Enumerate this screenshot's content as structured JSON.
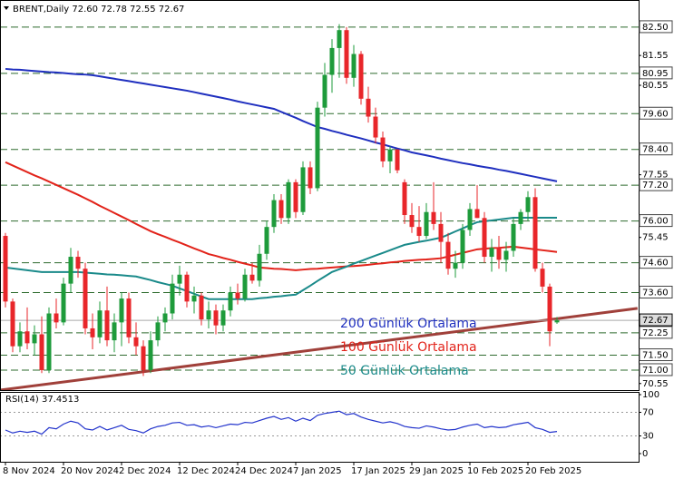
{
  "chart_data": [
    {
      "type": "candlestick",
      "title": "BRENT,Daily 72.60 72.78 72.55 72.67",
      "categories": [
        "8 Nov 2024",
        null,
        null,
        null,
        null,
        null,
        null,
        null,
        "20 Nov 2024",
        null,
        null,
        null,
        null,
        null,
        null,
        null,
        "2 Dec 2024",
        null,
        null,
        null,
        null,
        null,
        null,
        null,
        "12 Dec 2024",
        null,
        null,
        null,
        null,
        null,
        null,
        null,
        "24 Dec 2024",
        null,
        null,
        null,
        null,
        null,
        null,
        null,
        "7 Jan 2025",
        null,
        null,
        null,
        null,
        null,
        null,
        null,
        "17 Jan 2025",
        null,
        null,
        null,
        null,
        null,
        null,
        null,
        "29 Jan 2025",
        null,
        null,
        null,
        null,
        null,
        null,
        null,
        "10 Feb 2025",
        null,
        null,
        null,
        null,
        null,
        null,
        null,
        "20 Feb 2025",
        null,
        null,
        null,
        null
      ],
      "open": [
        75.5,
        73.3,
        71.8,
        72.3,
        71.9,
        72.2,
        71.0,
        72.9,
        72.6,
        73.9,
        74.8,
        74.4,
        72.4,
        72.1,
        73.0,
        72.0,
        72.6,
        73.4,
        72.1,
        71.8,
        71.0,
        72.0,
        72.6,
        72.9,
        73.9,
        74.2,
        73.3,
        73.5,
        72.7,
        73.0,
        72.5,
        73.0,
        73.6,
        73.4,
        74.2,
        74.0,
        74.9,
        75.8,
        76.7,
        76.1,
        77.3,
        76.3,
        77.8,
        77.1,
        79.8,
        80.9,
        81.8,
        82.4,
        80.8,
        81.6,
        80.1,
        79.5,
        78.8,
        78.0,
        78.4,
        77.3,
        76.2,
        75.8,
        75.5,
        76.3,
        75.9,
        75.3,
        74.4,
        74.6,
        75.7,
        76.4,
        76.1,
        74.8,
        75.1,
        74.7,
        75.0,
        75.9,
        76.3,
        76.8,
        74.4,
        73.8,
        72.6
      ],
      "high": [
        75.6,
        73.4,
        72.6,
        73.1,
        72.5,
        72.8,
        73.1,
        73.4,
        74.1,
        75.1,
        75.0,
        74.6,
        72.9,
        73.3,
        73.8,
        72.9,
        73.6,
        73.6,
        72.6,
        72.0,
        72.3,
        72.8,
        73.1,
        74.2,
        74.5,
        74.3,
        73.8,
        73.6,
        73.3,
        73.2,
        73.2,
        73.8,
        73.9,
        74.4,
        74.6,
        75.2,
        76.0,
        76.9,
        76.9,
        77.4,
        77.4,
        78.0,
        78.0,
        80.0,
        81.3,
        82.1,
        82.6,
        82.5,
        81.9,
        81.7,
        80.5,
        79.8,
        79.0,
        78.5,
        78.4,
        77.4,
        76.6,
        76.5,
        76.6,
        77.3,
        76.3,
        75.6,
        75.0,
        75.9,
        76.6,
        77.2,
        76.3,
        75.4,
        75.5,
        75.3,
        76.1,
        76.4,
        77.0,
        77.1,
        74.6,
        73.9,
        72.78
      ],
      "low": [
        73.1,
        71.6,
        71.6,
        71.7,
        71.5,
        70.9,
        70.9,
        72.4,
        72.5,
        73.6,
        74.1,
        72.2,
        71.7,
        71.9,
        71.8,
        71.6,
        71.8,
        71.9,
        71.5,
        70.8,
        70.9,
        71.8,
        72.3,
        72.7,
        73.5,
        73.1,
        72.9,
        72.5,
        72.4,
        72.2,
        72.3,
        72.8,
        73.2,
        73.3,
        73.9,
        73.8,
        74.7,
        75.6,
        75.9,
        75.9,
        76.1,
        76.2,
        76.9,
        77.0,
        79.5,
        80.3,
        80.8,
        80.6,
        80.5,
        79.9,
        79.3,
        78.6,
        77.8,
        77.6,
        77.6,
        75.9,
        75.6,
        75.3,
        75.4,
        75.7,
        74.6,
        74.2,
        74.1,
        74.4,
        75.5,
        76.1,
        74.6,
        74.3,
        74.4,
        74.3,
        74.8,
        75.7,
        76.0,
        74.3,
        73.6,
        71.8,
        72.55
      ],
      "close": [
        73.3,
        71.8,
        72.3,
        71.9,
        72.2,
        71.0,
        72.9,
        72.6,
        73.9,
        74.8,
        74.4,
        72.4,
        72.1,
        73.0,
        72.0,
        72.6,
        73.4,
        72.1,
        71.8,
        71.0,
        72.0,
        72.6,
        72.9,
        73.9,
        74.2,
        73.3,
        73.5,
        72.7,
        73.0,
        72.5,
        73.0,
        73.6,
        73.4,
        74.2,
        74.0,
        74.9,
        75.8,
        76.7,
        76.1,
        77.3,
        76.3,
        77.8,
        77.1,
        79.8,
        80.9,
        81.8,
        82.4,
        80.8,
        81.6,
        80.1,
        79.5,
        78.8,
        78.0,
        78.4,
        77.7,
        76.2,
        75.8,
        75.5,
        76.3,
        75.9,
        75.3,
        74.4,
        74.6,
        75.7,
        76.4,
        76.1,
        74.8,
        75.1,
        74.7,
        75.0,
        75.9,
        76.3,
        76.8,
        74.4,
        73.8,
        72.3,
        72.67
      ],
      "up_color": "#1e9b3b",
      "down_color": "#e8262a",
      "series": [
        {
          "name": "200 Günlük Ortalama",
          "color": "#1f2fbf",
          "values": [
            81.1,
            81.08,
            81.07,
            81.05,
            81.03,
            81.01,
            80.99,
            80.98,
            80.96,
            80.94,
            80.92,
            80.91,
            80.89,
            80.85,
            80.81,
            80.77,
            80.73,
            80.69,
            80.65,
            80.61,
            80.57,
            80.53,
            80.49,
            80.45,
            80.41,
            80.37,
            80.32,
            80.27,
            80.22,
            80.17,
            80.12,
            80.07,
            80.01,
            79.96,
            79.91,
            79.86,
            79.81,
            79.76,
            79.66,
            79.56,
            79.46,
            79.35,
            79.25,
            79.15,
            79.09,
            79.02,
            78.96,
            78.89,
            78.83,
            78.77,
            78.7,
            78.63,
            78.57,
            78.5,
            78.43,
            78.37,
            78.3,
            78.25,
            78.2,
            78.15,
            78.09,
            78.04,
            77.99,
            77.94,
            77.9,
            77.85,
            77.81,
            77.77,
            77.72,
            77.68,
            77.63,
            77.58,
            77.53,
            77.48,
            77.43,
            77.38,
            77.33
          ]
        },
        {
          "name": "100 Günlük Ortalama",
          "color": "#e2231a",
          "values": [
            77.97,
            77.86,
            77.75,
            77.64,
            77.53,
            77.43,
            77.32,
            77.21,
            77.1,
            76.99,
            76.88,
            76.76,
            76.64,
            76.51,
            76.39,
            76.27,
            76.15,
            76.03,
            75.9,
            75.78,
            75.66,
            75.56,
            75.47,
            75.37,
            75.28,
            75.18,
            75.08,
            74.99,
            74.89,
            74.83,
            74.76,
            74.7,
            74.63,
            74.57,
            74.51,
            74.44,
            74.42,
            74.4,
            74.39,
            74.37,
            74.35,
            74.37,
            74.39,
            74.4,
            74.42,
            74.44,
            74.46,
            74.48,
            74.49,
            74.51,
            74.53,
            74.56,
            74.58,
            74.61,
            74.63,
            74.66,
            74.68,
            74.7,
            74.71,
            74.73,
            74.75,
            74.81,
            74.87,
            74.93,
            74.99,
            75.05,
            75.07,
            75.09,
            75.1,
            75.12,
            75.14,
            75.11,
            75.08,
            75.05,
            75.02,
            74.99,
            74.96
          ]
        },
        {
          "name": "50 Günlük Ortalama",
          "color": "#1a8a8a",
          "values": [
            74.44,
            74.41,
            74.38,
            74.35,
            74.32,
            74.29,
            74.29,
            74.29,
            74.29,
            74.29,
            74.29,
            74.27,
            74.25,
            74.23,
            74.21,
            74.2,
            74.18,
            74.16,
            74.14,
            74.08,
            74.02,
            73.95,
            73.89,
            73.83,
            73.74,
            73.65,
            73.56,
            73.47,
            73.38,
            73.38,
            73.38,
            73.38,
            73.38,
            73.38,
            73.38,
            73.41,
            73.43,
            73.46,
            73.48,
            73.51,
            73.53,
            73.68,
            73.83,
            73.99,
            74.14,
            74.29,
            74.38,
            74.47,
            74.57,
            74.66,
            74.75,
            74.84,
            74.93,
            75.02,
            75.11,
            75.2,
            75.25,
            75.3,
            75.34,
            75.39,
            75.44,
            75.54,
            75.65,
            75.75,
            75.86,
            75.96,
            75.99,
            76.02,
            76.05,
            76.08,
            76.11,
            76.11,
            76.11,
            76.11,
            76.11,
            76.11,
            76.11
          ]
        }
      ],
      "ylim": [
        70.33,
        83.41
      ],
      "yticks": [
        81.55,
        80.55,
        77.55,
        75.45,
        70.55
      ],
      "levels": [
        {
          "value": 82.5,
          "label": "82.50"
        },
        {
          "value": 80.95,
          "label": "80.95"
        },
        {
          "value": 79.6,
          "label": "79.60"
        },
        {
          "value": 78.4,
          "label": "78.40"
        },
        {
          "value": 77.2,
          "label": "77.20"
        },
        {
          "value": 76,
          "label": "76.00"
        },
        {
          "value": 74.6,
          "label": "74.60"
        },
        {
          "value": 73.6,
          "label": "73.60"
        },
        {
          "value": 72.25,
          "label": "72.25"
        },
        {
          "value": 71.5,
          "label": "71.50"
        },
        {
          "value": 71,
          "label": "71.00"
        }
      ],
      "level_color": "#2e6b2e",
      "last_price": {
        "value": 72.67,
        "label": "72.67"
      },
      "trendline": {
        "color": "#a0403a",
        "x": [
          -0.75,
          87.1
        ],
        "values": [
          70.33,
          73.07
        ]
      }
    },
    {
      "type": "line",
      "title": "RSI(14) 37.4513",
      "color": "#2233cc",
      "values": [
        40,
        35,
        38,
        36,
        38,
        33,
        44,
        42,
        50,
        55,
        52,
        42,
        40,
        46,
        40,
        44,
        48,
        41,
        39,
        35,
        42,
        46,
        48,
        52,
        53,
        48,
        49,
        45,
        47,
        44,
        47,
        50,
        49,
        53,
        52,
        56,
        60,
        63,
        58,
        61,
        55,
        60,
        56,
        65,
        68,
        70,
        72,
        66,
        68,
        62,
        58,
        55,
        52,
        54,
        51,
        46,
        44,
        43,
        47,
        45,
        42,
        40,
        41,
        45,
        48,
        50,
        44,
        46,
        44,
        45,
        49,
        51,
        53,
        44,
        41,
        36,
        37.45
      ],
      "ylim": [
        0,
        100
      ],
      "yticks": [
        0,
        30,
        70,
        100
      ],
      "levels": [
        30,
        70
      ]
    }
  ]
}
